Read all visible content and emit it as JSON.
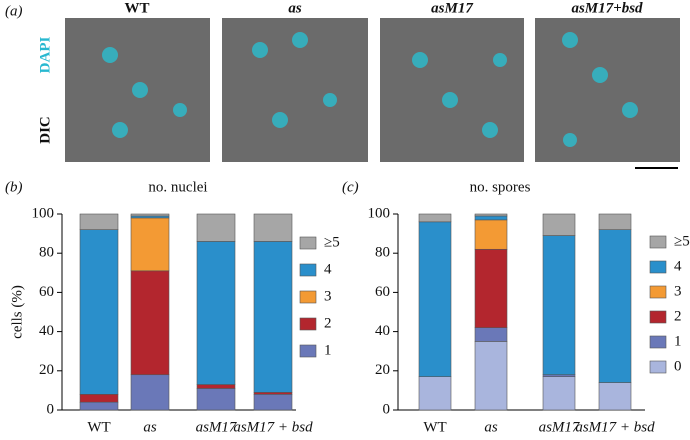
{
  "panel_a": {
    "label": "(a)",
    "columns": [
      "WT",
      "as",
      "asM17",
      "asM17+bsd"
    ],
    "stain_top": "DAPI",
    "stain_bottom": "DIC"
  },
  "chart_data": [
    {
      "type": "stacked_bar",
      "panel_label": "(b)",
      "title": "no. nuclei",
      "y_label": "cells (%)",
      "categories": [
        "WT",
        "as",
        "asM17",
        "asM17 + bsd"
      ],
      "series": [
        {
          "name": "1",
          "color": "#6a78b8",
          "values": [
            4,
            18,
            11,
            8
          ]
        },
        {
          "name": "2",
          "color": "#b3262e",
          "values": [
            4,
            53,
            2,
            1
          ]
        },
        {
          "name": "3",
          "color": "#f39a34",
          "values": [
            0,
            27,
            0,
            0
          ]
        },
        {
          "name": "4",
          "color": "#2a8fcb",
          "values": [
            84,
            1,
            73,
            77
          ]
        },
        {
          "name": "≥5",
          "color": "#a6a6a6",
          "values": [
            8,
            1,
            14,
            14
          ]
        }
      ],
      "ylim": [
        0,
        100
      ],
      "yticks": [
        0,
        20,
        40,
        60,
        80,
        100
      ]
    },
    {
      "type": "stacked_bar",
      "panel_label": "(c)",
      "title": "no. spores",
      "categories": [
        "WT",
        "as",
        "asM17",
        "asM17 + bsd"
      ],
      "series": [
        {
          "name": "0",
          "color": "#a9b5dd",
          "values": [
            17,
            35,
            17,
            14
          ]
        },
        {
          "name": "1",
          "color": "#6a78b8",
          "values": [
            0,
            7,
            1,
            0
          ]
        },
        {
          "name": "2",
          "color": "#b3262e",
          "values": [
            0,
            40,
            0,
            0
          ]
        },
        {
          "name": "3",
          "color": "#f39a34",
          "values": [
            0,
            15,
            0,
            0
          ]
        },
        {
          "name": "4",
          "color": "#2a8fcb",
          "values": [
            79,
            2,
            71,
            78
          ]
        },
        {
          "name": "≥5",
          "color": "#a6a6a6",
          "values": [
            4,
            1,
            11,
            8
          ]
        }
      ],
      "ylim": [
        0,
        100
      ],
      "yticks": [
        0,
        20,
        40,
        60,
        80,
        100
      ]
    }
  ]
}
